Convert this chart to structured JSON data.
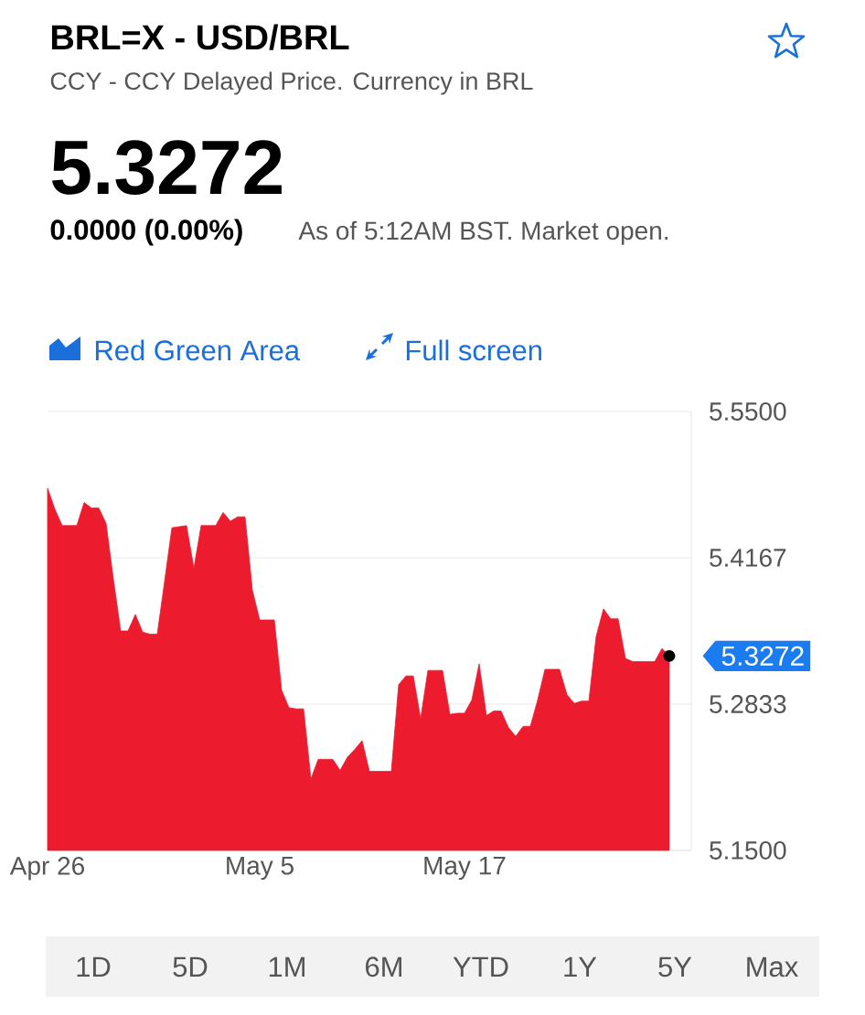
{
  "chart_data": {
    "type": "area",
    "title": "BRL=X - USD/BRL",
    "subtitle": "CCY - CCY Delayed Price. Currency in BRL",
    "categories": [
      "Apr 26",
      null,
      null,
      null,
      null,
      null,
      null,
      null,
      null,
      null,
      null,
      null,
      null,
      null,
      null,
      null,
      null,
      null,
      null,
      null,
      null,
      null,
      null,
      null,
      null,
      null,
      null,
      null,
      null,
      "May 5",
      null,
      null,
      null,
      null,
      null,
      null,
      null,
      null,
      null,
      null,
      null,
      null,
      null,
      null,
      null,
      null,
      null,
      null,
      null,
      null,
      null,
      null,
      null,
      null,
      null,
      null,
      null,
      "May 17",
      null,
      null,
      null,
      null,
      null,
      null,
      null,
      null,
      null,
      null,
      null,
      null,
      null,
      null,
      null,
      null,
      null,
      null,
      null,
      null,
      null,
      null,
      null,
      null,
      null,
      null,
      null,
      null
    ],
    "values": [
      5.48,
      5.461,
      5.446,
      5.446,
      5.446,
      5.467,
      5.462,
      5.462,
      5.448,
      5.397,
      5.35,
      5.35,
      5.365,
      5.349,
      5.347,
      5.347,
      5.395,
      5.444,
      5.445,
      5.446,
      5.407,
      5.446,
      5.446,
      5.446,
      5.458,
      5.45,
      5.454,
      5.454,
      5.387,
      5.36,
      5.36,
      5.36,
      5.296,
      5.28,
      5.279,
      5.279,
      5.215,
      5.233,
      5.233,
      5.233,
      5.223,
      5.235,
      5.242,
      5.25,
      5.222,
      5.222,
      5.222,
      5.222,
      5.301,
      5.309,
      5.309,
      5.27,
      5.314,
      5.314,
      5.314,
      5.274,
      5.275,
      5.275,
      5.287,
      5.32,
      5.273,
      5.277,
      5.277,
      5.262,
      5.254,
      5.263,
      5.263,
      5.287,
      5.315,
      5.315,
      5.315,
      5.292,
      5.284,
      5.286,
      5.286,
      5.345,
      5.37,
      5.361,
      5.361,
      5.325,
      5.322,
      5.322,
      5.322,
      5.322,
      5.334,
      5.3272
    ],
    "color": "#ec1c2e",
    "ylim": [
      5.15,
      5.55
    ],
    "yticks": [
      {
        "value": 5.15,
        "label": "5.1500"
      },
      {
        "value": 5.2833,
        "label": "5.2833"
      },
      {
        "value": 5.4167,
        "label": "5.4167"
      },
      {
        "value": 5.55,
        "label": "5.5500"
      }
    ],
    "grid": "y",
    "annotations": [
      "5.3272",
      "0.0000 (0.00%)",
      "As of 5:12AM BST. Market open.",
      "Red Green Area",
      "Full screen",
      "1D",
      "5D",
      "1M",
      "6M",
      "YTD",
      "1Y",
      "5Y",
      "Max",
      "5.3272"
    ]
  }
}
